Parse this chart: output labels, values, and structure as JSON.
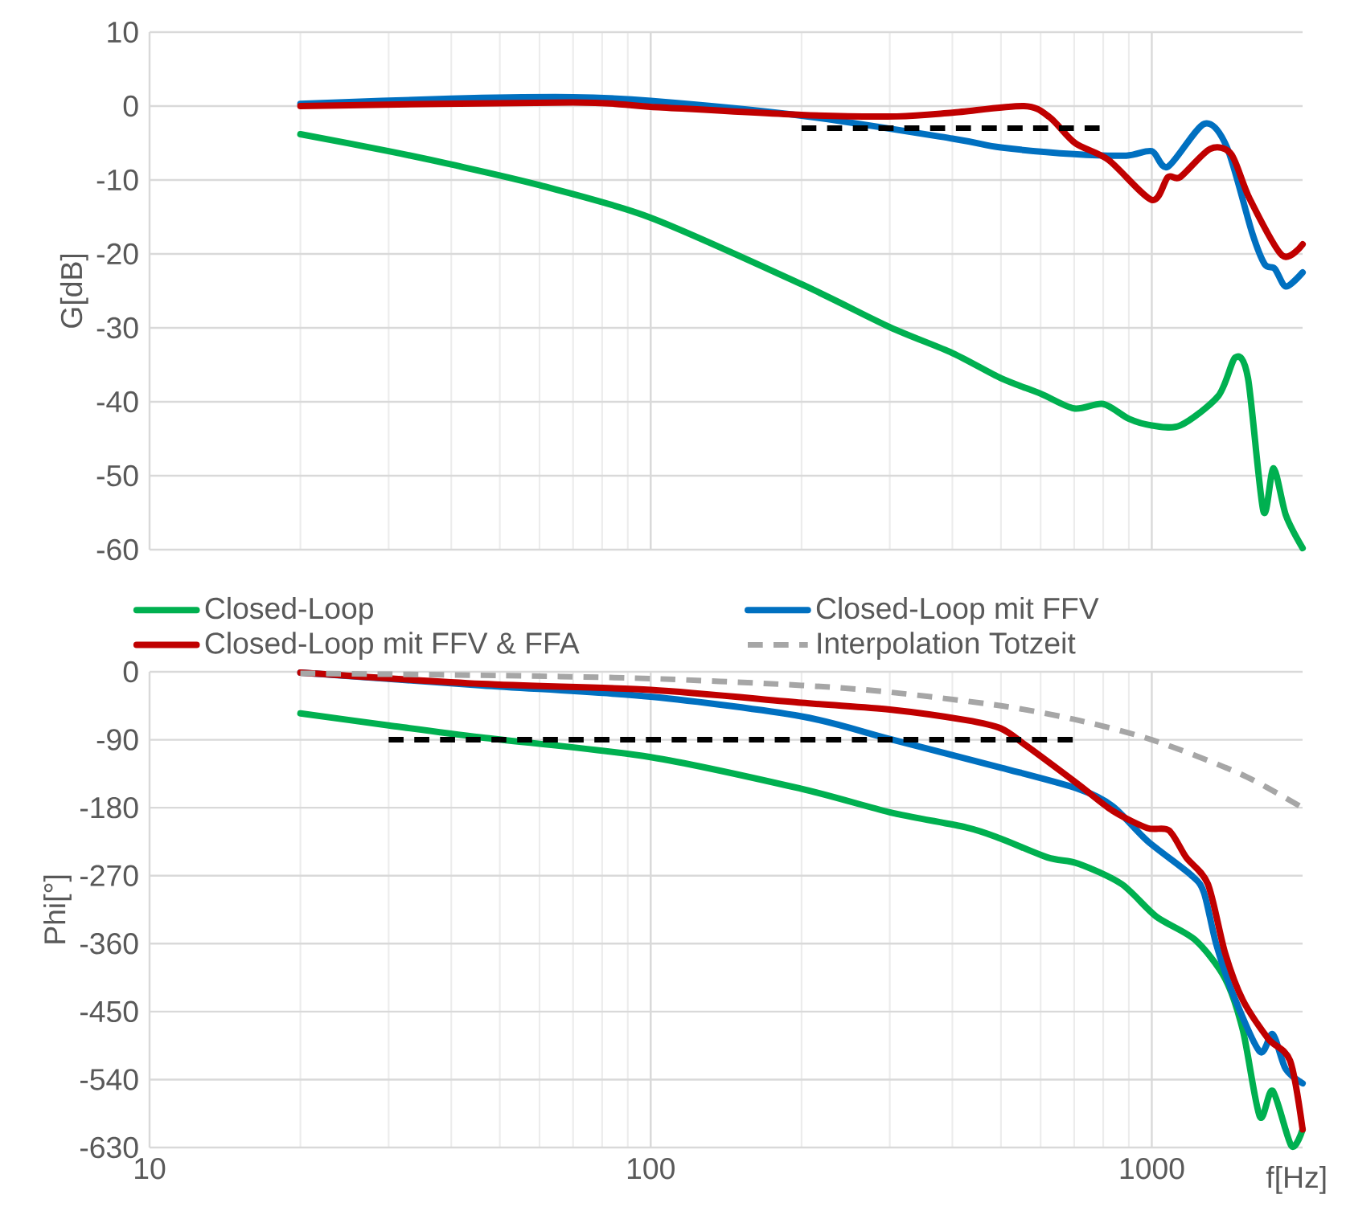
{
  "chart_data": [
    {
      "type": "line",
      "ylabel": "G[dB]",
      "log": "x",
      "xlim": [
        10,
        2000
      ],
      "xticks": [
        10,
        100,
        1000
      ],
      "ylim": [
        -60,
        10
      ],
      "yticks": [
        10,
        0,
        -10,
        -20,
        -30,
        -40,
        -50,
        -60
      ],
      "tick_labels": "y",
      "grid": true,
      "marker": "none",
      "line_style": "solid",
      "series": [
        {
          "color": "#00b050",
          "x": [
            20,
            30,
            40,
            60,
            100,
            200,
            300,
            400,
            500,
            600,
            700,
            800,
            900,
            1000,
            1140,
            1358,
            1469,
            1556,
            1670,
            1750,
            1853,
            2000
          ],
          "values": [
            -3.8,
            -6.1,
            -7.9,
            -10.7,
            -15.1,
            -24.1,
            -29.9,
            -33.4,
            -36.8,
            -38.9,
            -40.9,
            -40.3,
            -42.3,
            -43.2,
            -43.2,
            -39.2,
            -34,
            -36.8,
            -54.8,
            -49,
            -55.4,
            -59.8
          ]
        },
        {
          "color": "#0070c0",
          "x": [
            20,
            40,
            70,
            100,
            200,
            400,
            500,
            700,
            890,
            1000,
            1077,
            1273,
            1413,
            1585,
            1680,
            1760,
            1853,
            2000
          ],
          "values": [
            0.3,
            1.0,
            1.2,
            0.7,
            -1.3,
            -4.4,
            -5.6,
            -6.5,
            -6.7,
            -6.1,
            -8.2,
            -2.4,
            -5.6,
            -17.1,
            -21.4,
            -22,
            -24.4,
            -22.5
          ]
        },
        {
          "color": "#c00000",
          "x": [
            20,
            70,
            100,
            200,
            310,
            400,
            556,
            625,
            703,
            820,
            1000,
            1077,
            1140,
            1307,
            1440,
            1567,
            1820,
            2000
          ],
          "values": [
            0,
            0.5,
            -0.1,
            -1.2,
            -1.4,
            -0.9,
            0,
            -1.5,
            -5,
            -7.3,
            -12.7,
            -9.6,
            -9.6,
            -5.8,
            -6.5,
            -12.5,
            -20.2,
            -18.7
          ]
        },
        {
          "color": "#000000",
          "line_style": "dashed",
          "x": [
            200,
            800
          ],
          "values": [
            -3,
            -3
          ]
        }
      ]
    },
    {
      "type": "line",
      "ylabel": "Phi[°]",
      "xlabel": "f[Hz]",
      "log": "x",
      "xlim": [
        10,
        2000
      ],
      "xticks": [
        10,
        100,
        1000
      ],
      "ylim": [
        -630,
        0
      ],
      "yticks": [
        0,
        -90,
        -180,
        -270,
        -360,
        -450,
        -540,
        -630
      ],
      "grid": true,
      "legend": "top",
      "marker": "none",
      "line_style": "solid",
      "series": [
        {
          "name": "Closed-Loop",
          "color": "#00b050",
          "x": [
            20,
            30,
            46,
            100,
            200,
            300,
            426,
            500,
            620,
            713,
            870,
            1020,
            1220,
            1400,
            1520,
            1643,
            1743,
            1900,
            2000
          ],
          "values": [
            -55,
            -71,
            -87,
            -113,
            -155,
            -186,
            -206,
            -221,
            -246,
            -254,
            -281,
            -324,
            -355,
            -406,
            -475,
            -589,
            -555,
            -628,
            -606
          ]
        },
        {
          "name": "Closed-Loop mit FFV",
          "color": "#0070c0",
          "x": [
            20,
            46,
            100,
            200,
            300,
            500,
            713,
            835,
            980,
            1197,
            1270,
            1345,
            1457,
            1643,
            1743,
            1850,
            2000
          ],
          "values": [
            -1,
            -18,
            -33,
            -59,
            -89,
            -127,
            -155,
            -178,
            -224,
            -269,
            -292,
            -361,
            -429,
            -503,
            -480,
            -526,
            -545
          ]
        },
        {
          "name": "Closed-Loop mit FFV & FFA",
          "color": "#c00000",
          "x": [
            20,
            46,
            100,
            200,
            300,
            426,
            500,
            562,
            713,
            835,
            980,
            1082,
            1172,
            1294,
            1400,
            1520,
            1708,
            1888,
            2000
          ],
          "values": [
            -1,
            -16,
            -24,
            -41,
            -50,
            -64,
            -75,
            -98,
            -149,
            -184,
            -207,
            -210,
            -246,
            -281,
            -372,
            -435,
            -486,
            -515,
            -606
          ]
        },
        {
          "name": "Interpolation Totzeit",
          "color": "#a6a6a6",
          "line_style": "dashed",
          "x": [
            20,
            50,
            100,
            200,
            300,
            500,
            700,
            1000,
            1500,
            2000
          ],
          "values": [
            -2,
            -5,
            -9,
            -18,
            -27,
            -45,
            -63,
            -90,
            -135,
            -180
          ]
        },
        {
          "color": "#000000",
          "line_style": "dashed",
          "x": [
            30,
            700
          ],
          "values": [
            -90,
            -90
          ]
        }
      ]
    }
  ]
}
